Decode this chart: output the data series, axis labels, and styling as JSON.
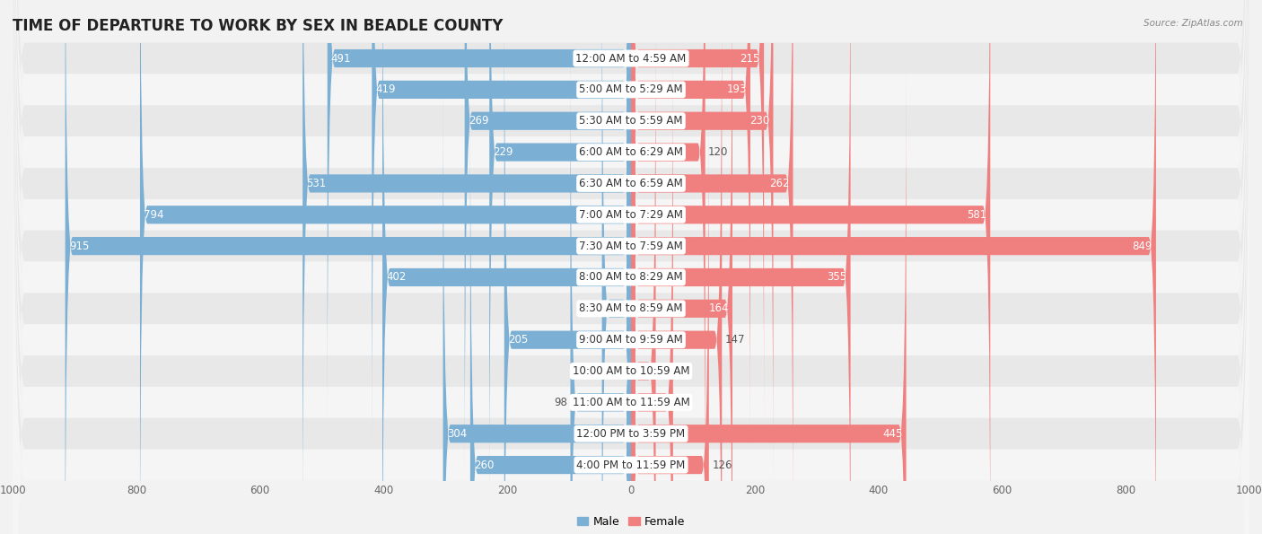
{
  "title": "TIME OF DEPARTURE TO WORK BY SEX IN BEADLE COUNTY",
  "source": "Source: ZipAtlas.com",
  "categories": [
    "12:00 AM to 4:59 AM",
    "5:00 AM to 5:29 AM",
    "5:30 AM to 5:59 AM",
    "6:00 AM to 6:29 AM",
    "6:30 AM to 6:59 AM",
    "7:00 AM to 7:29 AM",
    "7:30 AM to 7:59 AM",
    "8:00 AM to 8:29 AM",
    "8:30 AM to 8:59 AM",
    "9:00 AM to 9:59 AM",
    "10:00 AM to 10:59 AM",
    "11:00 AM to 11:59 AM",
    "12:00 PM to 3:59 PM",
    "4:00 PM to 11:59 PM"
  ],
  "male": [
    491,
    419,
    269,
    229,
    531,
    794,
    915,
    402,
    47,
    205,
    0,
    98,
    304,
    260
  ],
  "female": [
    215,
    193,
    230,
    120,
    262,
    581,
    849,
    355,
    164,
    147,
    40,
    68,
    445,
    126
  ],
  "male_color": "#7bafd4",
  "female_color": "#f08080",
  "bar_height": 0.58,
  "xlim": 1000,
  "background_color": "#f2f2f2",
  "row_bg_even": "#e8e8e8",
  "row_bg_odd": "#f5f5f5",
  "title_fontsize": 12,
  "label_fontsize": 8.5,
  "axis_label_fontsize": 8.5,
  "inside_threshold_male": 150,
  "inside_threshold_female": 150
}
